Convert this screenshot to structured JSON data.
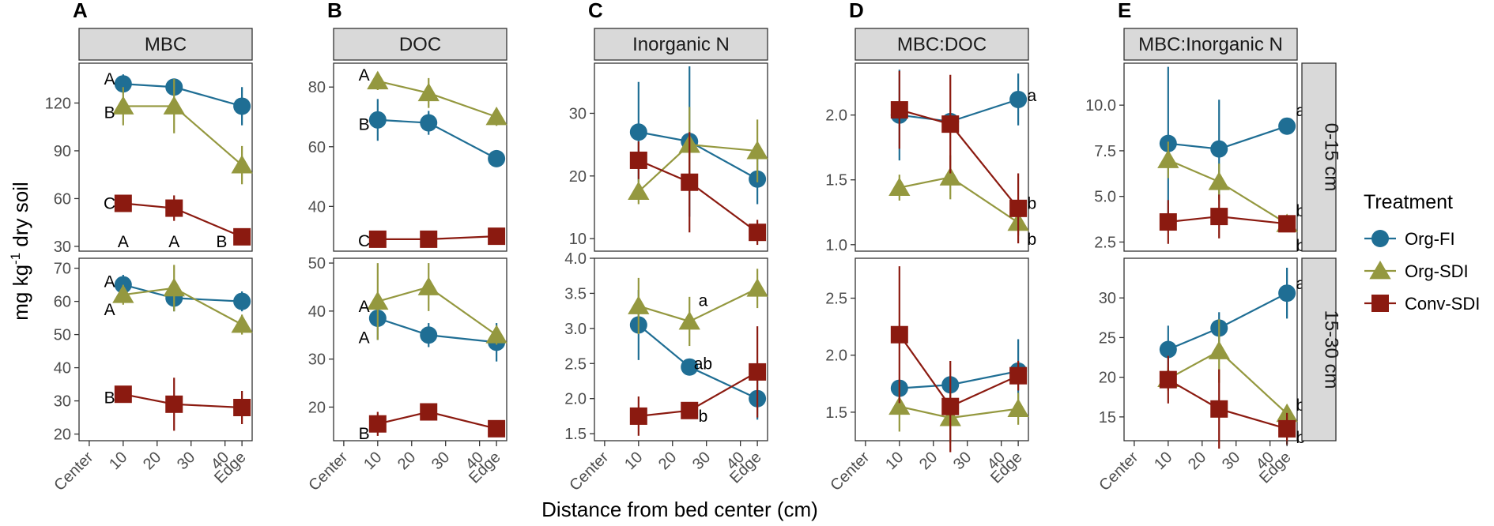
{
  "chart_data": {
    "type": "line",
    "x_axis_title": "Distance from bed center (cm)",
    "y_axis_title_prefix": "mg kg",
    "y_axis_title_sup": "-1",
    "y_axis_title_suffix": " dry soil",
    "x_ticks": [
      {
        "value": 0,
        "label": "Center"
      },
      {
        "value": 10,
        "label": "10"
      },
      {
        "value": 20,
        "label": "20"
      },
      {
        "value": 30,
        "label": "30"
      },
      {
        "value": 40,
        "label": "40"
      },
      {
        "value": 45,
        "label": "Edge"
      }
    ],
    "x_range": [
      -3,
      48
    ],
    "row_strips": [
      "0-15 cm",
      "15-30 cm"
    ],
    "legend": {
      "title": "Treatment",
      "items": [
        {
          "name": "Org-FI",
          "color": "#1f6e94",
          "shape": "circle"
        },
        {
          "name": "Org-SDI",
          "color": "#94983f",
          "shape": "triangle"
        },
        {
          "name": "Conv-SDI",
          "color": "#8b1a10",
          "shape": "square"
        }
      ]
    },
    "panels": [
      {
        "letter": "A",
        "title": "MBC",
        "rows": [
          {
            "ylim": [
              27,
              145
            ],
            "yticks": [
              30,
              60,
              90,
              120
            ],
            "series": {
              "Org-FI": {
                "x": [
                  10,
                  25,
                  45
                ],
                "y": [
                  132,
                  130,
                  118
                ],
                "err": [
                  6,
                  5,
                  12
                ]
              },
              "Org-SDI": {
                "x": [
                  10,
                  25,
                  45
                ],
                "y": [
                  118,
                  118,
                  81
                ],
                "err": [
                  12,
                  17,
                  12
                ]
              },
              "Conv-SDI": {
                "x": [
                  10,
                  25,
                  45
                ],
                "y": [
                  57,
                  54,
                  36
                ],
                "err": [
                  3,
                  8,
                  2
                ]
              }
            },
            "annotations": [
              {
                "text": "A",
                "x": 6,
                "y": 135
              },
              {
                "text": "B",
                "x": 6,
                "y": 114
              },
              {
                "text": "C",
                "x": 6,
                "y": 57
              },
              {
                "text": "A",
                "x": 10,
                "y": 33
              },
              {
                "text": "A",
                "x": 25,
                "y": 33
              },
              {
                "text": "B",
                "x": 39,
                "y": 33
              }
            ]
          },
          {
            "ylim": [
              18,
              73
            ],
            "yticks": [
              20,
              30,
              40,
              50,
              60,
              70
            ],
            "series": {
              "Org-FI": {
                "x": [
                  10,
                  25,
                  45
                ],
                "y": [
                  65,
                  61,
                  60
                ],
                "err": [
                  3,
                  4,
                  3
                ]
              },
              "Org-SDI": {
                "x": [
                  10,
                  25,
                  45
                ],
                "y": [
                  62,
                  64,
                  53
                ],
                "err": [
                  3,
                  7,
                  3
                ]
              },
              "Conv-SDI": {
                "x": [
                  10,
                  25,
                  45
                ],
                "y": [
                  32,
                  29,
                  28
                ],
                "err": [
                  2,
                  8,
                  5
                ]
              }
            },
            "annotations": [
              {
                "text": "A",
                "x": 6,
                "y": 66
              },
              {
                "text": "A",
                "x": 6,
                "y": 57.5
              },
              {
                "text": "B",
                "x": 6,
                "y": 31
              }
            ]
          }
        ]
      },
      {
        "letter": "B",
        "title": "DOC",
        "rows": [
          {
            "ylim": [
              25,
              88
            ],
            "yticks": [
              40,
              60,
              80
            ],
            "series": {
              "Org-FI": {
                "x": [
                  10,
                  25,
                  45
                ],
                "y": [
                  69,
                  68,
                  56
                ],
                "err": [
                  7,
                  4,
                  2
                ]
              },
              "Org-SDI": {
                "x": [
                  10,
                  25,
                  45
                ],
                "y": [
                  82,
                  78,
                  70
                ],
                "err": [
                  3,
                  5,
                  3
                ]
              },
              "Conv-SDI": {
                "x": [
                  10,
                  25,
                  45
                ],
                "y": [
                  29,
                  29,
                  30
                ],
                "err": [
                  1,
                  1,
                  2
                ]
              }
            },
            "annotations": [
              {
                "text": "A",
                "x": 6,
                "y": 84
              },
              {
                "text": "B",
                "x": 6,
                "y": 67.5
              },
              {
                "text": "C",
                "x": 6,
                "y": 28.5
              }
            ]
          },
          {
            "ylim": [
              13,
              51
            ],
            "yticks": [
              20,
              30,
              40,
              50
            ],
            "series": {
              "Org-FI": {
                "x": [
                  10,
                  25,
                  45
                ],
                "y": [
                  38.5,
                  35,
                  33.5
                ],
                "err": [
                  4.5,
                  2.5,
                  4
                ]
              },
              "Org-SDI": {
                "x": [
                  10,
                  25,
                  45
                ],
                "y": [
                  42,
                  45,
                  35
                ],
                "err": [
                  8,
                  5,
                  2
                ]
              },
              "Conv-SDI": {
                "x": [
                  10,
                  25,
                  45
                ],
                "y": [
                  16.5,
                  19,
                  15.5
                ],
                "err": [
                  2.5,
                  1.5,
                  1.5
                ]
              }
            },
            "annotations": [
              {
                "text": "A",
                "x": 6,
                "y": 41
              },
              {
                "text": "A",
                "x": 6,
                "y": 34.5
              },
              {
                "text": "B",
                "x": 6,
                "y": 14.5
              }
            ]
          }
        ]
      },
      {
        "letter": "C",
        "title": "Inorganic N",
        "rows": [
          {
            "ylim": [
              8,
              38
            ],
            "yticks": [
              10,
              20,
              30
            ],
            "series": {
              "Org-FI": {
                "x": [
                  10,
                  25,
                  45
                ],
                "y": [
                  27,
                  25.5,
                  19.5
                ],
                "err": [
                  8,
                  12,
                  4
                ]
              },
              "Org-SDI": {
                "x": [
                  10,
                  25,
                  45
                ],
                "y": [
                  17.5,
                  25,
                  24
                ],
                "err": [
                  2,
                  6,
                  5
                ]
              },
              "Conv-SDI": {
                "x": [
                  10,
                  25,
                  45
                ],
                "y": [
                  22.5,
                  19,
                  11
                ],
                "err": [
                  3,
                  8,
                  2
                ]
              }
            },
            "annotations": []
          },
          {
            "ylim": [
              1.4,
              4.0
            ],
            "yticks": [
              1.5,
              2.0,
              2.5,
              3.0,
              3.5,
              4.0
            ],
            "series": {
              "Org-FI": {
                "x": [
                  10,
                  25,
                  45
                ],
                "y": [
                  3.05,
                  2.45,
                  2.0
                ],
                "err": [
                  0.5,
                  0.12,
                  0.3
                ]
              },
              "Org-SDI": {
                "x": [
                  10,
                  25,
                  45
                ],
                "y": [
                  3.32,
                  3.1,
                  3.57
                ],
                "err": [
                  0.4,
                  0.35,
                  0.28
                ]
              },
              "Conv-SDI": {
                "x": [
                  10,
                  25,
                  45
                ],
                "y": [
                  1.75,
                  1.83,
                  2.38
                ],
                "err": [
                  0.28,
                  0.07,
                  0.65
                ]
              }
            },
            "annotations": [
              {
                "text": "a",
                "x": 29,
                "y": 3.4
              },
              {
                "text": "ab",
                "x": 29,
                "y": 2.5
              },
              {
                "text": "b",
                "x": 29,
                "y": 1.75
              }
            ]
          }
        ]
      },
      {
        "letter": "D",
        "title": "MBC:DOC",
        "rows": [
          {
            "ylim": [
              0.95,
              2.4
            ],
            "yticks": [
              1.0,
              1.5,
              2.0
            ],
            "series": {
              "Org-FI": {
                "x": [
                  10,
                  25,
                  45
                ],
                "y": [
                  2.0,
                  1.95,
                  2.12
                ],
                "err": [
                  0.35,
                  0.05,
                  0.2
                ]
              },
              "Org-SDI": {
                "x": [
                  10,
                  25,
                  45
                ],
                "y": [
                  1.44,
                  1.52,
                  1.17
                ],
                "err": [
                  0.1,
                  0.17,
                  0.1
                ]
              },
              "Conv-SDI": {
                "x": [
                  10,
                  25,
                  45
                ],
                "y": [
                  2.04,
                  1.93,
                  1.28
                ],
                "err": [
                  0.3,
                  0.38,
                  0.27
                ]
              }
            },
            "annotations": [
              {
                "text": "a",
                "x": 49,
                "y": 2.15
              },
              {
                "text": "b",
                "x": 49,
                "y": 1.32
              },
              {
                "text": "b",
                "x": 49,
                "y": 1.04
              }
            ]
          },
          {
            "ylim": [
              1.25,
              2.85
            ],
            "yticks": [
              1.5,
              2.0,
              2.5
            ],
            "series": {
              "Org-FI": {
                "x": [
                  10,
                  25,
                  45
                ],
                "y": [
                  1.71,
                  1.74,
                  1.86
                ],
                "err": [
                  0.03,
                  0.08,
                  0.28
                ]
              },
              "Org-SDI": {
                "x": [
                  10,
                  25,
                  45
                ],
                "y": [
                  1.55,
                  1.45,
                  1.53
                ],
                "err": [
                  0.22,
                  0.22,
                  0.14
                ]
              },
              "Conv-SDI": {
                "x": [
                  10,
                  25,
                  45
                ],
                "y": [
                  2.18,
                  1.55,
                  1.82
                ],
                "err": [
                  0.6,
                  0.4,
                  0.13
                ]
              }
            },
            "annotations": []
          }
        ]
      },
      {
        "letter": "E",
        "title": "MBC:Inorganic N",
        "rows": [
          {
            "ylim": [
              2.0,
              12.3
            ],
            "yticks": [
              2.5,
              5.0,
              7.5,
              10.0
            ],
            "series": {
              "Org-FI": {
                "x": [
                  10,
                  25,
                  45
                ],
                "y": [
                  7.9,
                  7.6,
                  8.85
                ],
                "err": [
                  4.2,
                  2.7,
                  0.3
                ]
              },
              "Org-SDI": {
                "x": [
                  10,
                  25,
                  45
                ],
                "y": [
                  7.0,
                  5.8,
                  3.5
                ],
                "err": [
                  1.0,
                  1.0,
                  0.4
                ]
              },
              "Conv-SDI": {
                "x": [
                  10,
                  25,
                  45
                ],
                "y": [
                  3.6,
                  3.9,
                  3.5
                ],
                "err": [
                  1.2,
                  1.2,
                  0.3
                ]
              }
            },
            "annotations": [
              {
                "text": "a",
                "x": 49,
                "y": 9.7
              },
              {
                "text": "b",
                "x": 49,
                "y": 4.2
              },
              {
                "text": "b",
                "x": 49,
                "y": 2.3
              }
            ]
          },
          {
            "ylim": [
              12,
              35
            ],
            "yticks": [
              15,
              20,
              25,
              30
            ],
            "series": {
              "Org-FI": {
                "x": [
                  10,
                  25,
                  45
                ],
                "y": [
                  23.5,
                  26.2,
                  30.6
                ],
                "err": [
                  3,
                  2,
                  3.2
                ]
              },
              "Org-SDI": {
                "x": [
                  10,
                  25,
                  45
                ],
                "y": [
                  19.8,
                  23.3,
                  15.4
                ],
                "err": [
                  1.5,
                  4,
                  1
                ]
              },
              "Conv-SDI": {
                "x": [
                  10,
                  25,
                  45
                ],
                "y": [
                  19.7,
                  16,
                  13.5
                ],
                "err": [
                  3,
                  5,
                  2
                ]
              }
            },
            "annotations": [
              {
                "text": "a",
                "x": 49,
                "y": 31.8
              },
              {
                "text": "b",
                "x": 49,
                "y": 16.5
              },
              {
                "text": "b",
                "x": 49,
                "y": 12.4
              }
            ]
          }
        ]
      }
    ]
  }
}
